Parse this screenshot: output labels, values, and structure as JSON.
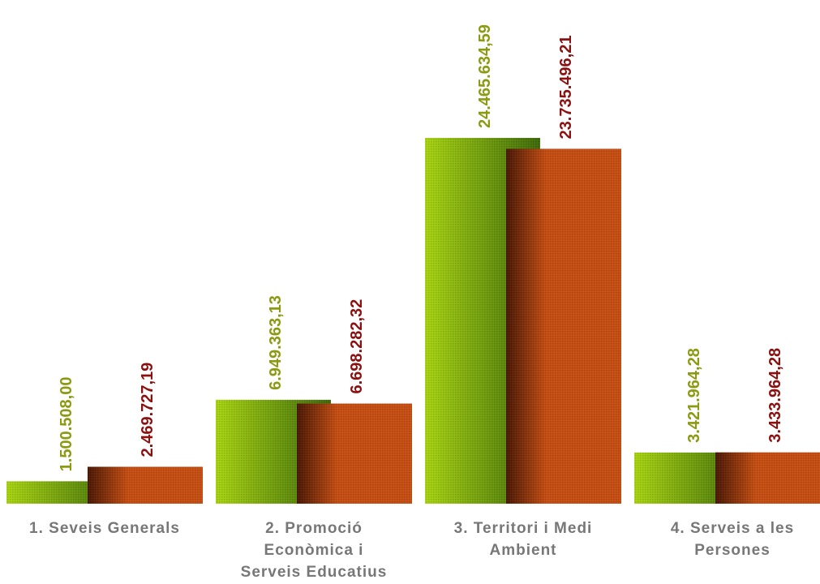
{
  "chart_data": {
    "type": "bar",
    "categories": [
      [
        "1. Seveis Generals"
      ],
      [
        "2.  Promoció",
        "Econòmica i",
        "Serveis Educatius"
      ],
      [
        "3.  Territori i Medi",
        "Ambient"
      ],
      [
        "4.  Serveis a les",
        "Persones"
      ]
    ],
    "series": [
      {
        "values": [
          1500508.0,
          6949363.13,
          24465634.59,
          3421964.28
        ],
        "labels": [
          "1.500.508,00",
          "6.949.363,13",
          "24.465.634,59",
          "3.421.964,28"
        ]
      },
      {
        "values": [
          2469727.19,
          6698282.32,
          23735496.21,
          3433964.28
        ],
        "labels": [
          "2.469.727,19",
          "6.698.282,32",
          "23.735.496,21",
          "3.433.964,28"
        ]
      }
    ],
    "title": "",
    "xlabel": "",
    "ylabel": "",
    "ylim": [
      0,
      24465634.59
    ],
    "grid": false,
    "legend": "none"
  },
  "colors": {
    "series_1_light": "#a8d411",
    "series_1_dark": "#3d6a0a",
    "series_1_label": "#8c9a12",
    "series_2_light": "#c64e12",
    "series_2_dark": "#4a1804",
    "series_2_label": "#8b1010",
    "category_label": "#777777"
  }
}
